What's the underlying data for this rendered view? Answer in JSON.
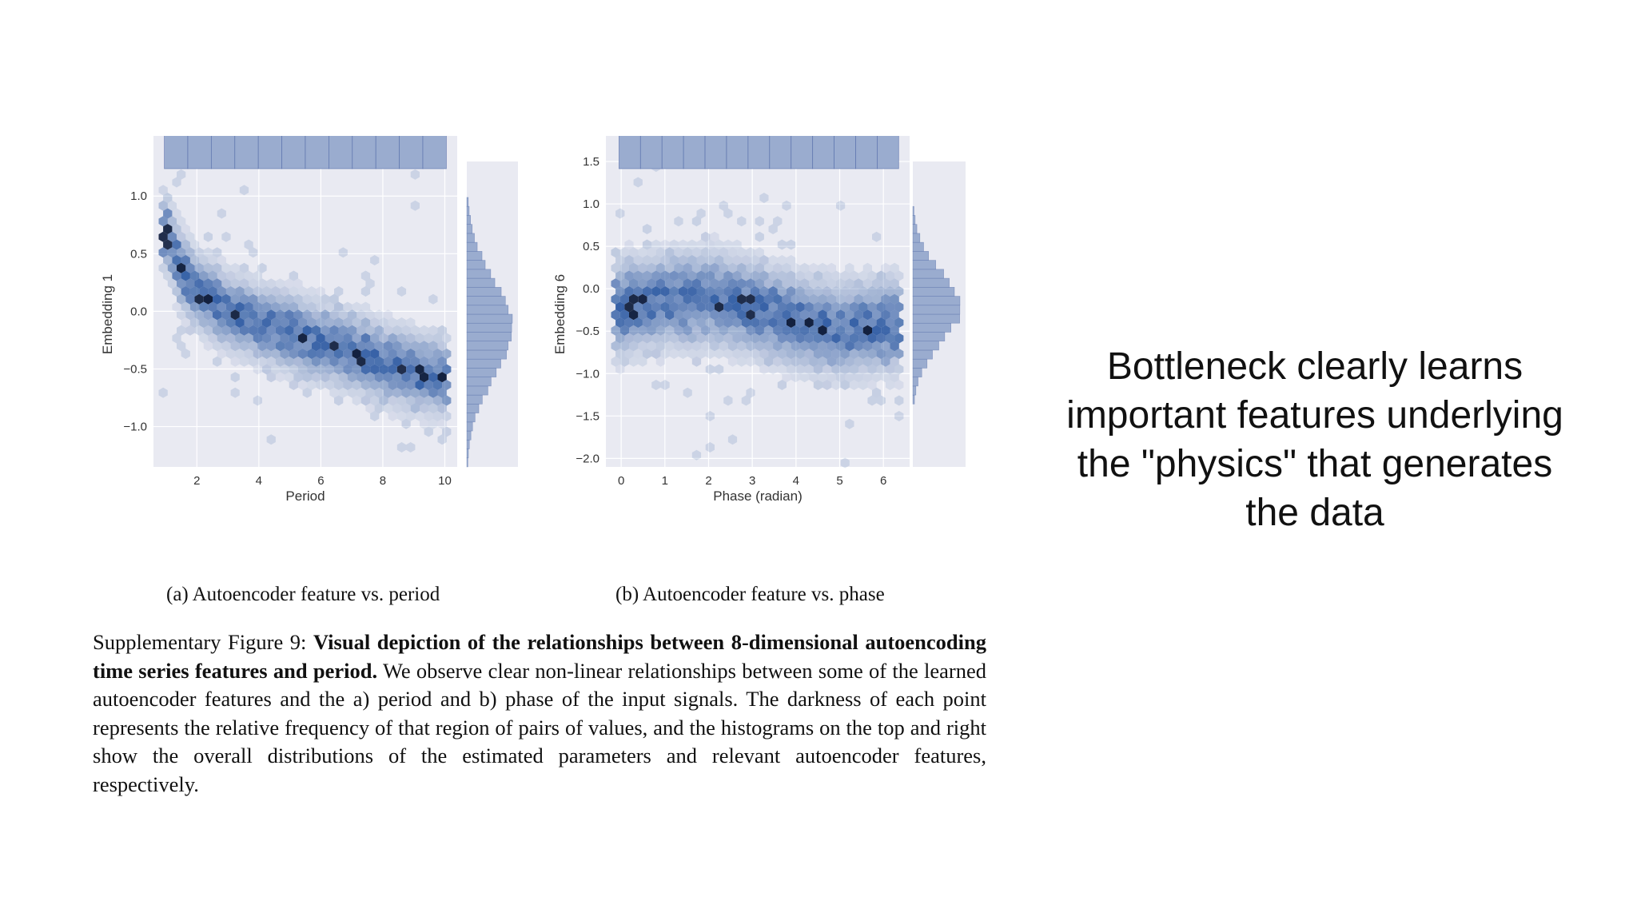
{
  "slide_text": "Bottleneck clearly learns important features underlying the \"physics\" that generates the data",
  "colors": {
    "panel_bg": "#e9eaf2",
    "hist": "#9aaccf",
    "hist_edge": "#4a63a3",
    "hex_dark": "#0b1a3a"
  },
  "chart_data": [
    {
      "type": "heatmap",
      "subtitle": "(a) Autoencoder feature vs. period",
      "xlabel": "Period",
      "ylabel": "Embedding 1",
      "xlim": [
        0.6,
        10.4
      ],
      "ylim": [
        -1.35,
        1.3
      ],
      "xticks": [
        2,
        4,
        6,
        8,
        10
      ],
      "yticks": [
        -1.0,
        -0.5,
        0.0,
        0.5,
        1.0
      ],
      "x_tick_labels": [
        "2",
        "4",
        "6",
        "8",
        "10"
      ],
      "y_tick_labels": [
        "−1.0",
        "−0.5",
        "0.0",
        "0.5",
        "1.0"
      ],
      "trend": {
        "x": [
          1.0,
          1.5,
          2.0,
          3.0,
          4.0,
          5.0,
          6.0,
          7.0,
          8.0,
          9.0,
          10.0
        ],
        "y": [
          0.7,
          0.35,
          0.18,
          0.0,
          -0.1,
          -0.18,
          -0.27,
          -0.35,
          -0.45,
          -0.52,
          -0.57
        ]
      },
      "spread": 0.17,
      "top_histogram": {
        "bins": 12,
        "values": [
          0.95,
          0.91,
          0.97,
          0.92,
          0.94,
          0.93,
          0.95,
          0.92,
          0.93,
          0.96,
          0.9,
          0.95
        ]
      },
      "right_histogram": {
        "shape": "peaked",
        "center": -0.15,
        "width": 0.42
      },
      "grid": true,
      "legend": "none"
    },
    {
      "type": "heatmap",
      "subtitle": "(b) Autoencoder feature vs. phase",
      "xlabel": "Phase (radian)",
      "ylabel": "Embedding 6",
      "xlim": [
        -0.35,
        6.6
      ],
      "ylim": [
        -2.1,
        1.5
      ],
      "xticks": [
        0,
        1,
        2,
        3,
        4,
        5,
        6
      ],
      "yticks": [
        -2.0,
        -1.5,
        -1.0,
        -0.5,
        0.0,
        0.5,
        1.0,
        1.5
      ],
      "x_tick_labels": [
        "0",
        "1",
        "2",
        "3",
        "4",
        "5",
        "6"
      ],
      "y_tick_labels": [
        "−2.0",
        "−1.5",
        "−1.0",
        "−0.5",
        "0.0",
        "0.5",
        "1.0",
        "1.5"
      ],
      "trend": {
        "x": [
          0,
          1,
          2,
          3,
          4,
          5,
          6.3
        ],
        "y": [
          -0.22,
          -0.14,
          -0.1,
          -0.22,
          -0.38,
          -0.48,
          -0.42
        ]
      },
      "spread": 0.28,
      "top_histogram": {
        "bins": 13,
        "values": [
          0.95,
          0.96,
          0.92,
          0.94,
          0.97,
          0.93,
          0.95,
          0.94,
          0.92,
          0.93,
          0.95,
          0.96,
          0.88
        ]
      },
      "right_histogram": {
        "shape": "peaked",
        "center": -0.22,
        "width": 0.42
      },
      "grid": true,
      "legend": "none"
    }
  ],
  "caption": {
    "label": "Supplementary Figure 9:",
    "bold": "Visual depiction of the relationships between 8-dimensional autoencoding time series features and period.",
    "text": "We observe clear non-linear relationships between some of the learned autoencoder features and the a) period and b) phase of the input signals. The darkness of each point represents the relative frequency of that region of pairs of values, and the histograms on the top and right show the overall distributions of the estimated parameters and relevant autoencoder features, respectively."
  }
}
